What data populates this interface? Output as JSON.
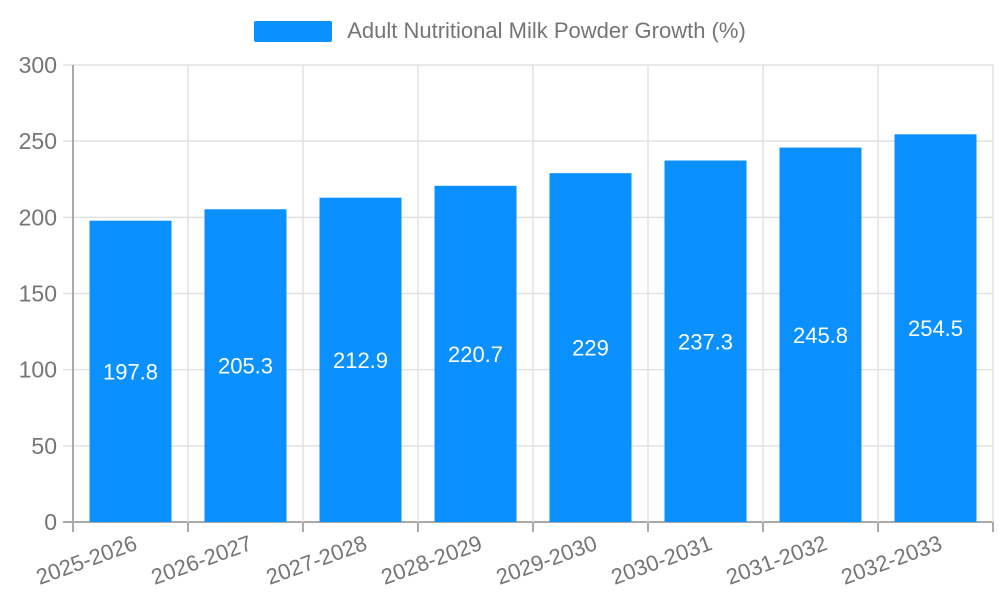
{
  "legend": {
    "label": "Adult Nutritional Milk Powder Growth (%)"
  },
  "chart_data": {
    "type": "bar",
    "title": "Adult Nutritional Milk Powder Growth (%)",
    "categories": [
      "2025-2026",
      "2026-2027",
      "2027-2028",
      "2028-2029",
      "2029-2030",
      "2030-2031",
      "2031-2032",
      "2032-2033"
    ],
    "values": [
      197.8,
      205.3,
      212.9,
      220.7,
      229,
      237.3,
      245.8,
      254.5
    ],
    "value_labels": [
      "197.8",
      "205.3",
      "212.9",
      "220.7",
      "229",
      "237.3",
      "245.8",
      "254.5"
    ],
    "xlabel": "",
    "ylabel": "",
    "ylim": [
      0,
      300
    ],
    "yticks": [
      "0",
      "50",
      "100",
      "150",
      "200",
      "250",
      "300"
    ],
    "grid": "on",
    "legend_position": "top-center",
    "x_label_rotation_deg": -20,
    "bar_color": "#0a90ff",
    "bar_label_color": "#ffffff",
    "axis_color": "#aaaaaa",
    "grid_color": "#e2e2e2",
    "text_color": "#757575",
    "background_color": "#ffffff"
  }
}
